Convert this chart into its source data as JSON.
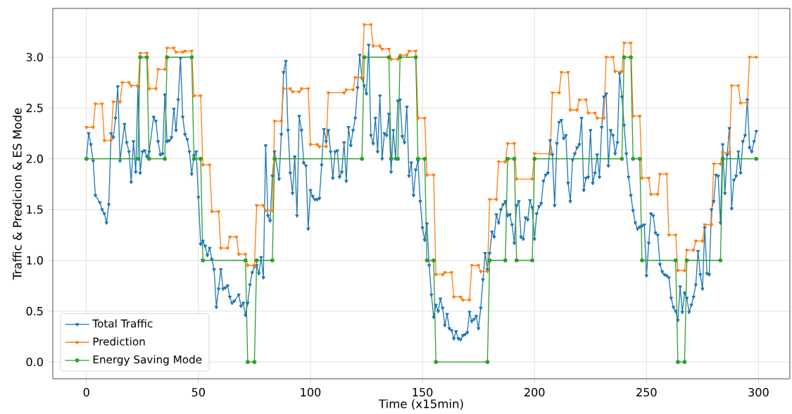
{
  "chart_data": {
    "type": "line",
    "xlabel": "Time (x15min)",
    "ylabel": "Traffic & Predicion & ES Mode",
    "xlim": [
      -15,
      314
    ],
    "ylim": [
      -0.166,
      3.48
    ],
    "xticks": [
      0,
      50,
      100,
      150,
      200,
      250,
      300
    ],
    "yticks": [
      {
        "value": 0,
        "label": "0.0"
      },
      0.5,
      {
        "value": 1,
        "label": "1.0"
      },
      1.5,
      {
        "value": 2,
        "label": "2.0"
      },
      2.5,
      {
        "value": 3,
        "label": "3.0"
      }
    ],
    "grid": true,
    "legend": "bottom left",
    "line_style": "solid",
    "series": [
      {
        "name": "Total Traffic",
        "color": "#1f77b4",
        "marker": "triangle",
        "x": [
          0,
          1,
          2,
          3,
          4,
          6,
          7,
          8,
          9,
          10,
          11,
          12,
          13,
          14,
          15,
          17,
          18,
          19,
          20,
          21,
          22,
          23,
          24,
          25,
          26,
          27,
          28,
          30,
          31,
          32,
          33,
          34,
          35,
          36,
          37,
          38,
          39,
          40,
          41,
          42,
          43,
          44,
          45,
          46,
          47,
          48,
          49,
          50,
          51,
          52,
          53,
          54,
          55,
          56,
          57,
          58,
          59,
          60,
          61,
          62,
          63,
          64,
          65,
          66,
          68,
          69,
          70,
          71,
          72,
          73,
          74,
          75,
          76,
          77,
          78,
          79,
          80,
          81,
          82,
          83,
          84,
          86,
          87,
          88,
          89,
          90,
          91,
          92,
          93,
          94,
          95,
          96,
          97,
          98,
          99,
          100,
          101,
          102,
          103,
          104,
          105,
          106,
          107,
          108,
          109,
          110,
          111,
          112,
          113,
          114,
          115,
          116,
          117,
          118,
          119,
          120,
          121,
          122,
          123,
          124,
          125,
          126,
          127,
          128,
          129,
          130,
          131,
          132,
          133,
          134,
          135,
          136,
          137,
          138,
          139,
          140,
          141,
          142,
          143,
          144,
          145,
          146,
          147,
          148,
          149,
          150,
          151,
          152,
          153,
          154,
          155,
          156,
          157,
          158,
          159,
          160,
          161,
          162,
          163,
          164,
          165,
          166,
          167,
          168,
          169,
          170,
          171,
          172,
          173,
          174,
          175,
          176,
          177,
          178,
          179,
          180,
          181,
          182,
          183,
          184,
          185,
          186,
          187,
          188,
          189,
          190,
          191,
          192,
          193,
          194,
          195,
          196,
          197,
          198,
          199,
          200,
          201,
          202,
          203,
          204,
          205,
          206,
          207,
          208,
          209,
          210,
          211,
          212,
          213,
          214,
          215,
          216,
          217,
          218,
          219,
          220,
          221,
          222,
          223,
          224,
          225,
          226,
          227,
          228,
          229,
          230,
          231,
          232,
          233,
          234,
          235,
          236,
          237,
          238,
          239,
          240,
          241,
          242,
          243,
          244,
          245,
          246,
          247,
          248,
          249,
          250,
          251,
          252,
          253,
          254,
          255,
          256,
          257,
          258,
          259,
          260,
          261,
          262,
          263,
          264,
          265,
          266,
          267,
          268,
          269,
          270,
          271,
          272,
          273,
          274,
          275,
          276,
          277,
          278,
          279,
          280,
          281,
          282,
          283,
          284,
          285,
          286,
          287,
          288,
          289,
          290,
          291,
          292,
          293,
          294,
          295,
          296,
          297,
          298,
          299
        ],
        "values": [
          2.0,
          2.25,
          2.14,
          1.98,
          1.64,
          1.57,
          1.5,
          1.46,
          1.37,
          1.55,
          2.25,
          2.21,
          2.4,
          2.71,
          1.98,
          2.34,
          2.16,
          2.07,
          1.77,
          2.17,
          1.87,
          2.71,
          1.86,
          2.07,
          2.08,
          2.02,
          2.07,
          2.41,
          2.37,
          2.17,
          2.04,
          2.05,
          2.63,
          2.17,
          2.18,
          2.21,
          2.49,
          2.28,
          2.58,
          2.99,
          2.41,
          2.24,
          2.19,
          2.07,
          1.85,
          2.03,
          2.07,
          1.62,
          1.16,
          1.19,
          1.14,
          1.05,
          1.12,
          1.01,
          0.91,
          0.54,
          0.72,
          0.91,
          0.72,
          0.73,
          0.75,
          0.64,
          0.58,
          0.6,
          0.66,
          0.55,
          0.58,
          0.46,
          0.58,
          0.76,
          0.88,
          0.94,
          0.95,
          0.87,
          1.03,
          0.83,
          2.13,
          1.44,
          1.39,
          1.83,
          2.07,
          1.8,
          2.24,
          2.85,
          2.96,
          2.28,
          1.86,
          1.66,
          2.02,
          1.44,
          2.42,
          2.28,
          1.96,
          1.93,
          1.31,
          1.69,
          1.63,
          1.6,
          1.6,
          1.61,
          1.94,
          2.29,
          2.17,
          2.28,
          2.07,
          1.81,
          2.07,
          2.08,
          1.82,
          1.87,
          2.16,
          1.78,
          2.31,
          2.13,
          2.28,
          2.4,
          2.7,
          3.02,
          2.79,
          2.72,
          2.64,
          3.12,
          2.23,
          2.15,
          2.4,
          2.07,
          2.62,
          2.0,
          2.25,
          2.23,
          2.44,
          1.87,
          2.28,
          2.0,
          2.57,
          2.58,
          2.22,
          2.16,
          2.51,
          1.83,
          1.96,
          1.64,
          1.89,
          1.98,
          1.58,
          1.32,
          1.2,
          1.36,
          0.95,
          0.66,
          0.44,
          0.56,
          0.5,
          0.62,
          0.53,
          0.36,
          0.47,
          0.33,
          0.31,
          0.23,
          0.3,
          0.23,
          0.22,
          0.26,
          0.27,
          0.29,
          0.49,
          0.4,
          0.42,
          0.45,
          0.33,
          0.53,
          0.81,
          1.07,
          0.91,
          1.07,
          1.28,
          1.23,
          1.45,
          1.37,
          1.5,
          1.55,
          1.58,
          1.44,
          1.45,
          1.35,
          1.17,
          1.54,
          1.58,
          1.23,
          1.21,
          1.42,
          1.4,
          1.59,
          1.52,
          1.21,
          1.46,
          1.53,
          1.56,
          1.78,
          1.84,
          1.86,
          2.18,
          2.04,
          1.54,
          2.15,
          2.36,
          2.38,
          2.2,
          2.23,
          1.76,
          1.58,
          1.99,
          2.05,
          2.11,
          2.14,
          2.4,
          1.69,
          1.81,
          1.82,
          2.28,
          1.76,
          1.86,
          2.04,
          1.82,
          2.31,
          2.61,
          2.64,
          1.93,
          2.28,
          2.23,
          2.05,
          2.16,
          2.84,
          2.61,
          2.33,
          2.05,
          1.82,
          1.64,
          1.49,
          1.37,
          1.31,
          1.33,
          1.34,
          1.35,
          0.85,
          1.17,
          1.46,
          1.44,
          1.27,
          1.25,
          0.96,
          0.89,
          0.86,
          0.85,
          0.83,
          0.63,
          0.54,
          0.5,
          0.41,
          0.74,
          0.49,
          0.68,
          0.63,
          0.49,
          0.56,
          0.64,
          0.76,
          1.09,
          0.86,
          0.72,
          1.32,
          0.87,
          0.86,
          1.5,
          1.58,
          1.84,
          1.83,
          1.37,
          2.14,
          1.66,
          2.04,
          2.3,
          1.51,
          1.79,
          1.83,
          2.07,
          1.86,
          2.17,
          2.23,
          2.58,
          2.11,
          2.07,
          2.17,
          2.27
        ]
      },
      {
        "name": "Prediction",
        "color": "#ff7f0e",
        "marker": "triangle",
        "x": [
          0,
          3,
          4,
          7,
          8,
          11,
          12,
          15,
          16,
          19,
          20,
          23,
          24,
          27,
          28,
          31,
          32,
          35,
          36,
          39,
          40,
          43,
          44,
          47,
          48,
          51,
          52,
          55,
          56,
          59,
          60,
          63,
          64,
          67,
          68,
          71,
          72,
          75,
          76,
          79,
          80,
          83,
          84,
          87,
          88,
          91,
          92,
          95,
          96,
          99,
          100,
          103,
          104,
          107,
          108,
          115,
          116,
          119,
          120,
          123,
          124,
          127,
          128,
          131,
          132,
          135,
          136,
          139,
          140,
          143,
          144,
          147,
          148,
          151,
          152,
          155,
          156,
          159,
          160,
          163,
          164,
          167,
          168,
          171,
          172,
          175,
          176,
          179,
          180,
          183,
          184,
          187,
          188,
          191,
          192,
          199,
          200,
          207,
          208,
          211,
          212,
          215,
          216,
          219,
          220,
          223,
          224,
          227,
          228,
          231,
          232,
          235,
          236,
          239,
          240,
          243,
          244,
          247,
          248,
          251,
          252,
          255,
          256,
          259,
          260,
          263,
          264,
          267,
          268,
          271,
          272,
          275,
          276,
          279,
          280,
          283,
          284,
          287,
          288,
          291,
          292,
          295,
          296,
          299
        ],
        "values": [
          2.31,
          2.31,
          2.54,
          2.54,
          2.18,
          2.18,
          2.56,
          2.56,
          2.75,
          2.75,
          2.72,
          2.72,
          3.04,
          3.04,
          2.69,
          2.69,
          2.88,
          2.88,
          3.09,
          3.09,
          3.05,
          3.05,
          3.06,
          3.06,
          2.62,
          2.62,
          1.94,
          1.94,
          1.48,
          1.48,
          1.12,
          1.12,
          1.23,
          1.23,
          1.06,
          1.06,
          0.95,
          0.95,
          1.54,
          1.54,
          1.49,
          1.49,
          2.37,
          2.37,
          2.69,
          2.69,
          2.66,
          2.66,
          2.69,
          2.69,
          2.14,
          2.14,
          2.12,
          2.12,
          2.65,
          2.65,
          2.68,
          2.68,
          2.8,
          2.8,
          3.32,
          3.32,
          3.11,
          3.11,
          3.08,
          3.08,
          2.98,
          2.98,
          3.02,
          3.02,
          3.06,
          3.06,
          2.4,
          2.4,
          1.84,
          1.84,
          0.86,
          0.86,
          0.88,
          0.88,
          0.64,
          0.64,
          0.61,
          0.61,
          0.95,
          0.95,
          0.89,
          0.89,
          1.6,
          1.6,
          1.97,
          1.97,
          2.15,
          2.15,
          1.8,
          1.8,
          2.05,
          2.05,
          2.65,
          2.65,
          2.85,
          2.85,
          2.48,
          2.48,
          2.58,
          2.58,
          2.45,
          2.45,
          2.4,
          2.4,
          3.0,
          3.0,
          2.86,
          2.86,
          3.14,
          3.14,
          2.42,
          2.42,
          1.81,
          1.81,
          1.65,
          1.65,
          1.85,
          1.85,
          1.25,
          1.25,
          0.9,
          0.9,
          1.1,
          1.1,
          1.19,
          1.19,
          1.35,
          1.35,
          1.95,
          1.95,
          2.06,
          2.06,
          2.72,
          2.72,
          2.55,
          2.55,
          3.0,
          3.0
        ]
      },
      {
        "name": "Energy Saving Mode",
        "color": "#2ca02c",
        "marker": "circle",
        "x": [
          0,
          23,
          24,
          27,
          28,
          35,
          36,
          47,
          48,
          51,
          52,
          71,
          72,
          75,
          76,
          83,
          84,
          123,
          124,
          135,
          136,
          139,
          140,
          147,
          148,
          151,
          152,
          155,
          156,
          179,
          180,
          187,
          188,
          191,
          192,
          199,
          200,
          239,
          240,
          243,
          244,
          247,
          248,
          263,
          264,
          267,
          268,
          283,
          284,
          299
        ],
        "values": [
          2,
          2,
          3,
          3,
          2,
          2,
          3,
          3,
          2,
          2,
          1,
          1,
          0,
          0,
          1,
          1,
          2,
          2,
          3,
          3,
          2,
          2,
          3,
          3,
          2,
          2,
          1,
          1,
          0,
          0,
          1,
          1,
          2,
          2,
          1,
          1,
          2,
          2,
          3,
          3,
          2,
          2,
          1,
          1,
          0,
          0,
          1,
          1,
          2,
          2
        ]
      }
    ]
  }
}
